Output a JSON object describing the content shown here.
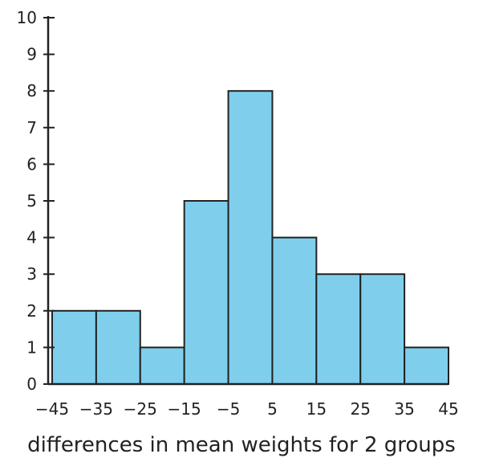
{
  "chart_data": {
    "type": "bar",
    "subtype": "histogram",
    "title": "",
    "xlabel": "differences in mean weights for 2 groups",
    "ylabel": "",
    "bin_edges": [
      -45,
      -35,
      -25,
      -15,
      -5,
      5,
      15,
      25,
      35,
      45
    ],
    "x_tick_labels": [
      "−45",
      "−35",
      "−25",
      "−15",
      "−5",
      "5",
      "15",
      "25",
      "35",
      "45"
    ],
    "values": [
      2,
      2,
      1,
      5,
      8,
      4,
      3,
      3,
      1
    ],
    "ylim": [
      0,
      10
    ],
    "y_ticks": [
      0,
      1,
      2,
      3,
      4,
      5,
      6,
      7,
      8,
      9,
      10
    ],
    "xlim": [
      -45,
      45
    ],
    "grid": false,
    "legend": "none",
    "colors": {
      "bar_fill": "#7fcfec",
      "bar_stroke": "#222222",
      "axis": "#222222"
    }
  }
}
